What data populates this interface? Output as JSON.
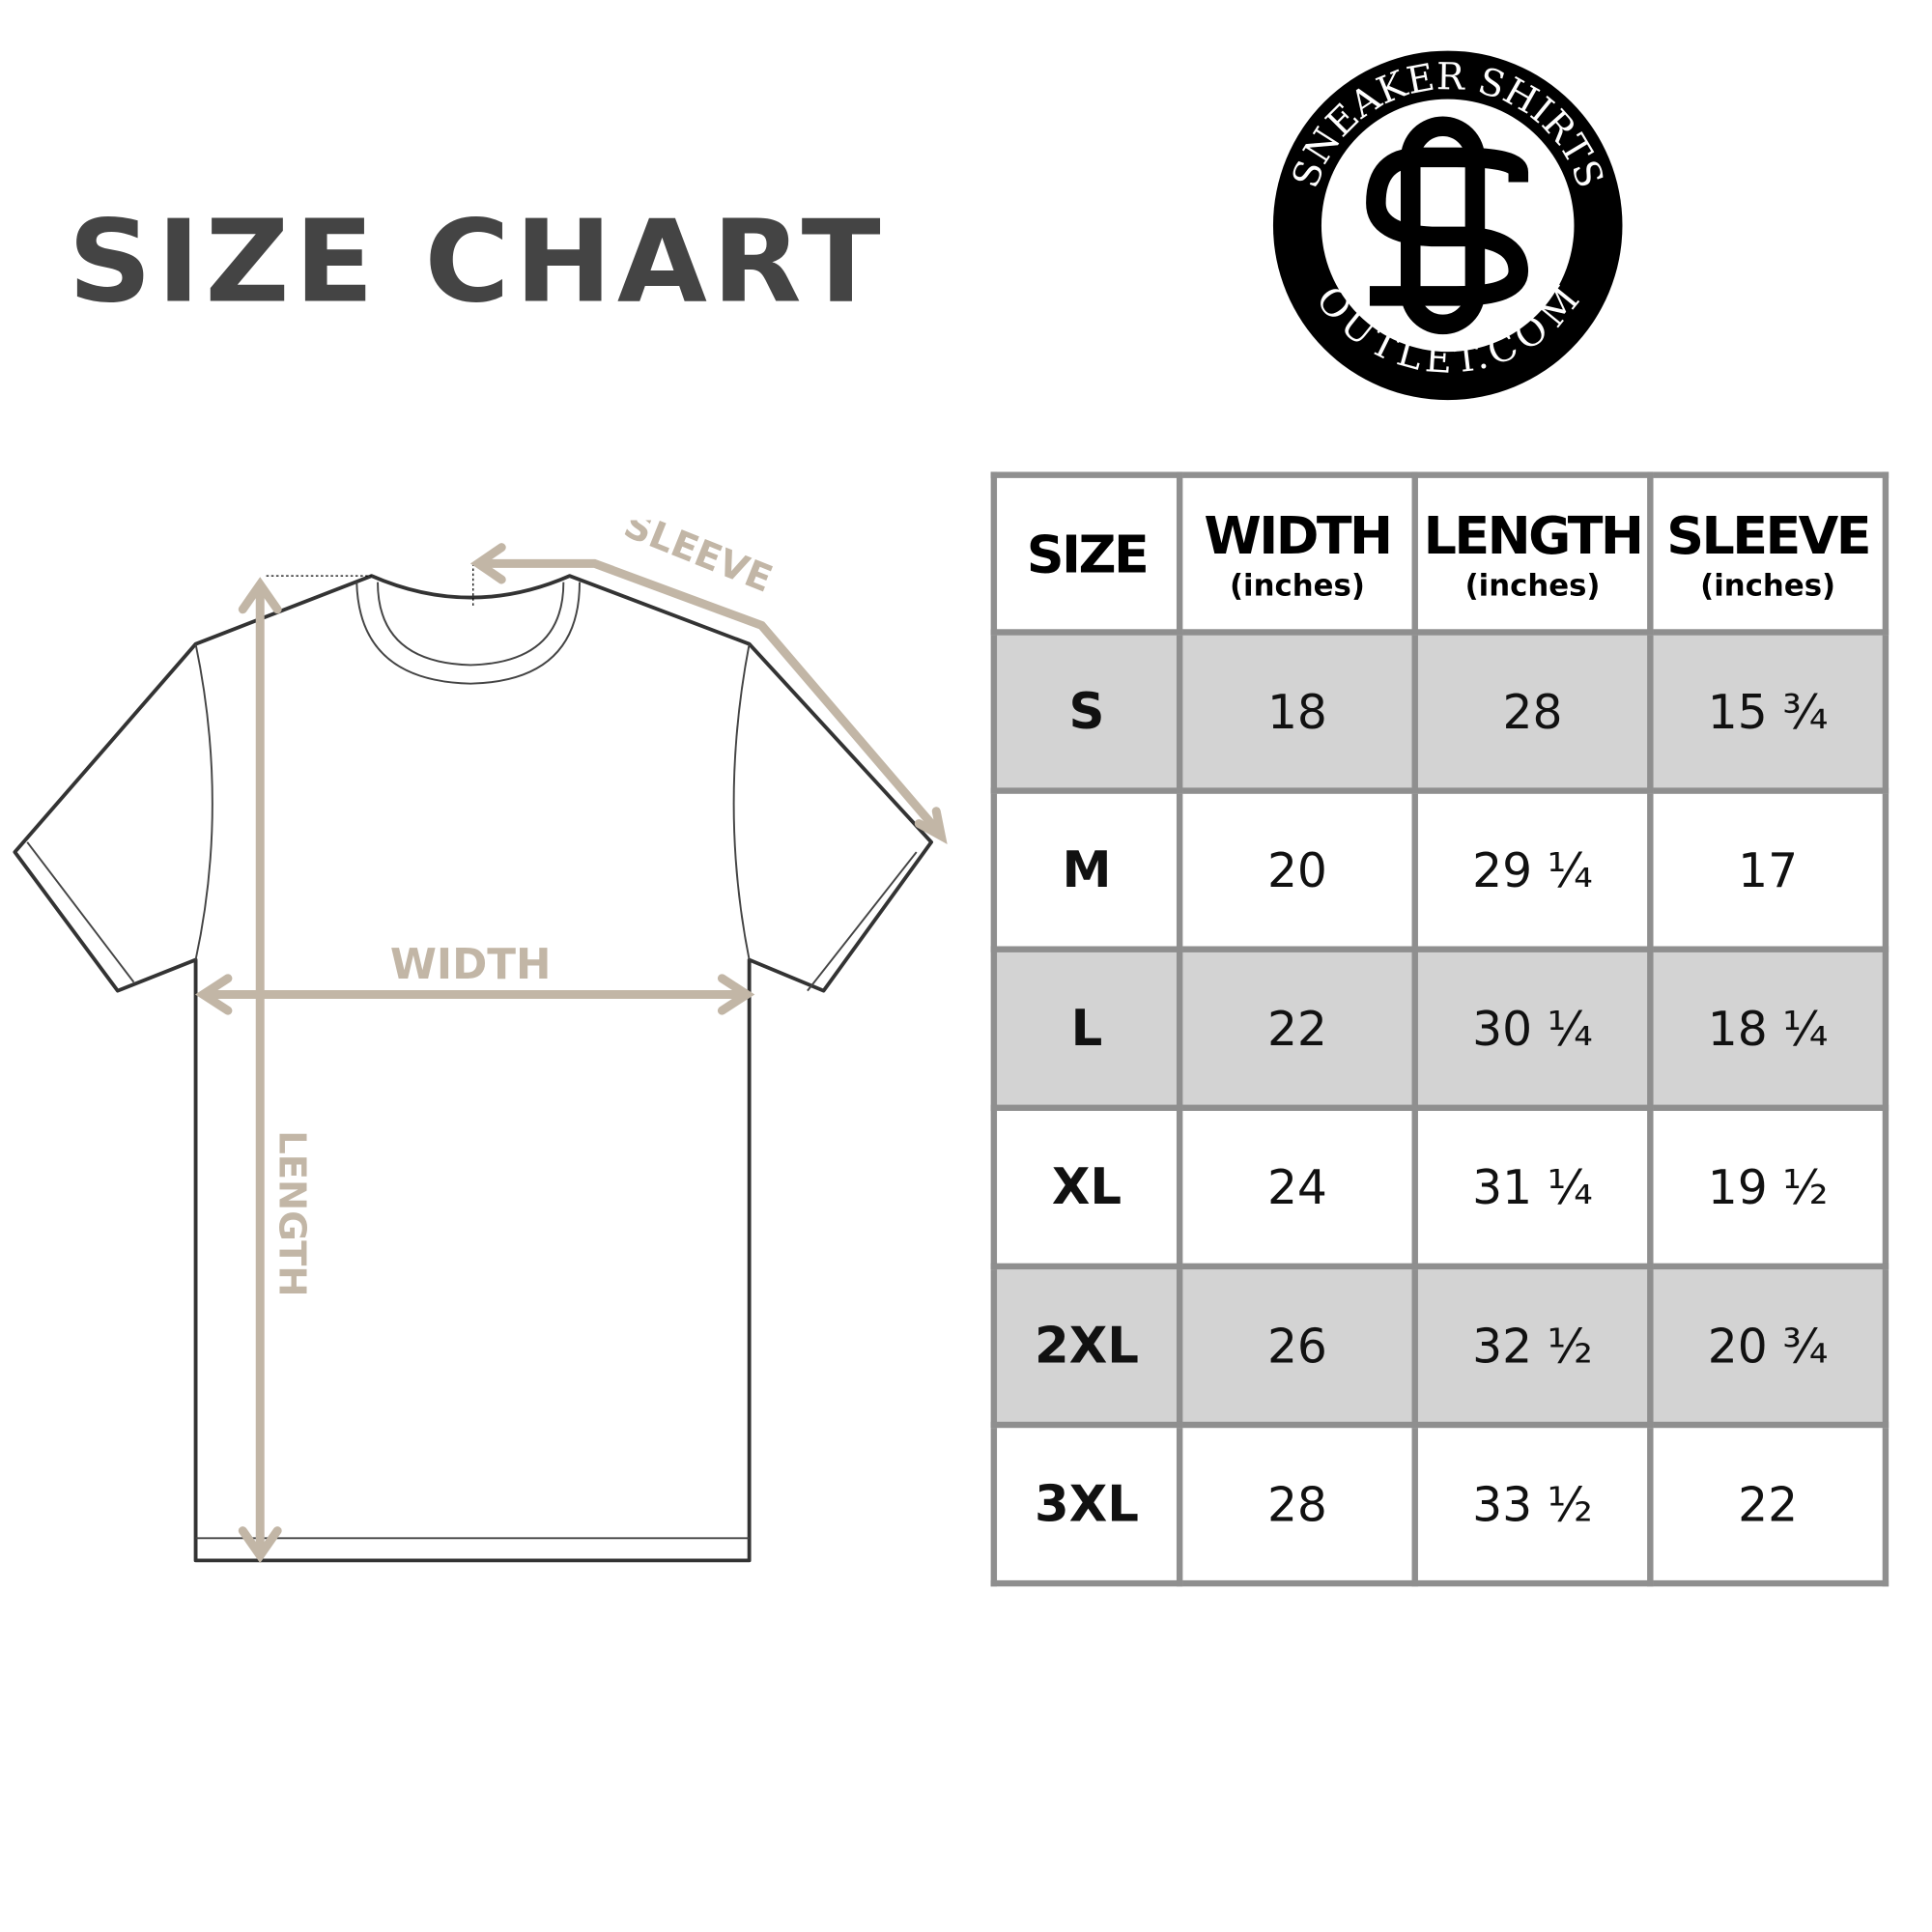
{
  "title": "SIZE CHART",
  "logo": {
    "top_text": "SNEAKER SHIRTS",
    "bottom_text": "OUTLET.COM",
    "monogram": "SO"
  },
  "diagram": {
    "sleeve_label": "SLEEVE",
    "width_label": "WIDTH",
    "length_label": "LENGTH",
    "arrow_color": "#c2b6a6"
  },
  "table": {
    "headers": [
      {
        "label": "SIZE",
        "unit": ""
      },
      {
        "label": "WIDTH",
        "unit": "(inches)"
      },
      {
        "label": "LENGTH",
        "unit": "(inches)"
      },
      {
        "label": "SLEEVE",
        "unit": "(inches)"
      }
    ],
    "rows": [
      [
        "S",
        "18",
        "28",
        "15 ¾"
      ],
      [
        "M",
        "20",
        "29 ¼",
        "17"
      ],
      [
        "L",
        "22",
        "30 ¼",
        "18 ¼"
      ],
      [
        "XL",
        "24",
        "31 ¼",
        "19 ½"
      ],
      [
        "2XL",
        "26",
        "32 ½",
        "20 ¾"
      ],
      [
        "3XL",
        "28",
        "33 ½",
        "22"
      ]
    ],
    "shade_color": "#d3d3d3",
    "border_color": "#8f8f8f"
  }
}
